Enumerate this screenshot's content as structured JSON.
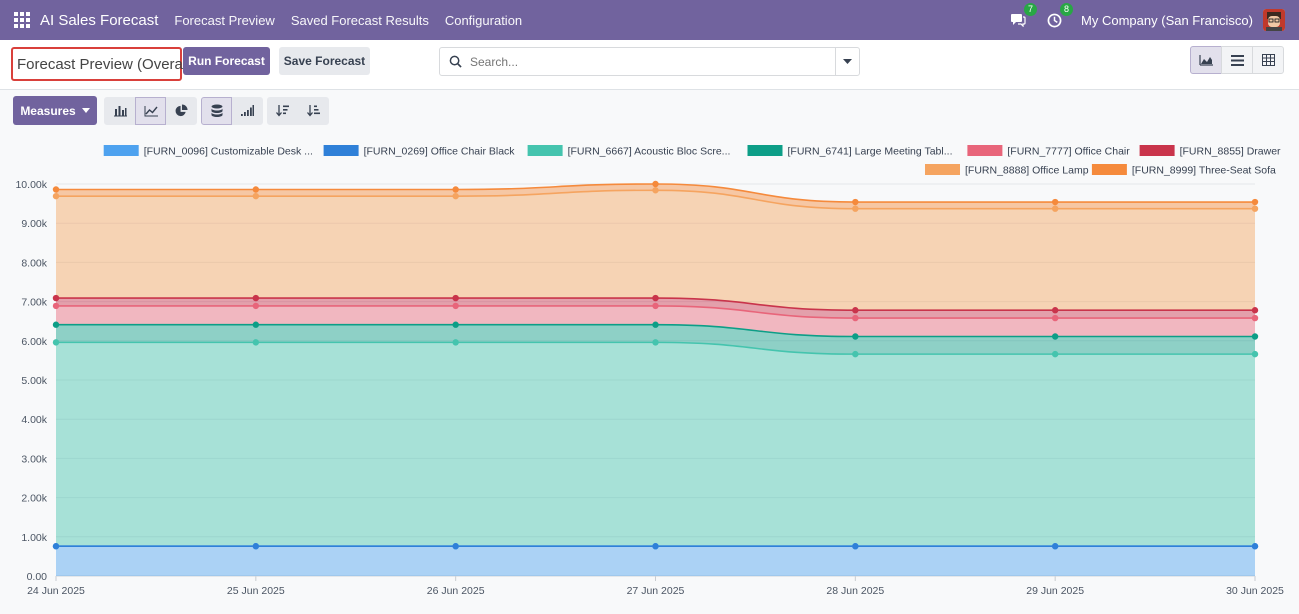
{
  "navbar": {
    "brand": "AI Sales Forecast",
    "menu": [
      "Forecast Preview",
      "Saved Forecast Results",
      "Configuration"
    ],
    "messages_count": "7",
    "activities_count": "8",
    "company": "My Company (San Francisco)"
  },
  "control": {
    "title": "Forecast Preview (Overall)",
    "run_label": "Run Forecast",
    "save_label": "Save Forecast",
    "search_placeholder": "Search..."
  },
  "toolbar": {
    "measures_label": "Measures"
  },
  "colors": {
    "primary": "#71639e"
  },
  "chart_data": {
    "type": "area",
    "stacked": true,
    "x": [
      "24 Jun 2025",
      "25 Jun 2025",
      "26 Jun 2025",
      "27 Jun 2025",
      "28 Jun 2025",
      "29 Jun 2025",
      "30 Jun 2025"
    ],
    "ylim": [
      0,
      10000
    ],
    "yticks": [
      "0.00",
      "1.00k",
      "2.00k",
      "3.00k",
      "4.00k",
      "5.00k",
      "6.00k",
      "7.00k",
      "8.00k",
      "9.00k",
      "10.00k"
    ],
    "grid": true,
    "legend_position": "top-right",
    "series": [
      {
        "name": "[FURN_0096] Customizable Desk ...",
        "color": "#4ea2ef",
        "values": [
          760,
          760,
          760,
          760,
          760,
          760,
          760
        ]
      },
      {
        "name": "[FURN_0269] Office Chair Black",
        "color": "#2f80d8",
        "values": [
          0,
          0,
          0,
          0,
          0,
          0,
          0
        ]
      },
      {
        "name": "[FURN_6667] Acoustic Bloc Scre...",
        "color": "#45c4ae",
        "values": [
          5200,
          5200,
          5200,
          5200,
          4900,
          4900,
          4900
        ]
      },
      {
        "name": "[FURN_6741] Large Meeting Tabl...",
        "color": "#0d9e87",
        "values": [
          450,
          450,
          450,
          450,
          450,
          450,
          450
        ]
      },
      {
        "name": "[FURN_7777] Office Chair",
        "color": "#e8657a",
        "values": [
          480,
          480,
          480,
          480,
          470,
          470,
          470
        ]
      },
      {
        "name": "[FURN_8855] Drawer",
        "color": "#c9344b",
        "values": [
          200,
          200,
          200,
          200,
          200,
          200,
          200
        ]
      },
      {
        "name": "[FURN_8888] Office Lamp",
        "color": "#f5a460",
        "values": [
          2600,
          2600,
          2600,
          2750,
          2590,
          2590,
          2590
        ]
      },
      {
        "name": "[FURN_8999] Three-Seat Sofa",
        "color": "#f58a3c",
        "values": [
          170,
          170,
          170,
          160,
          170,
          170,
          170
        ]
      }
    ]
  }
}
